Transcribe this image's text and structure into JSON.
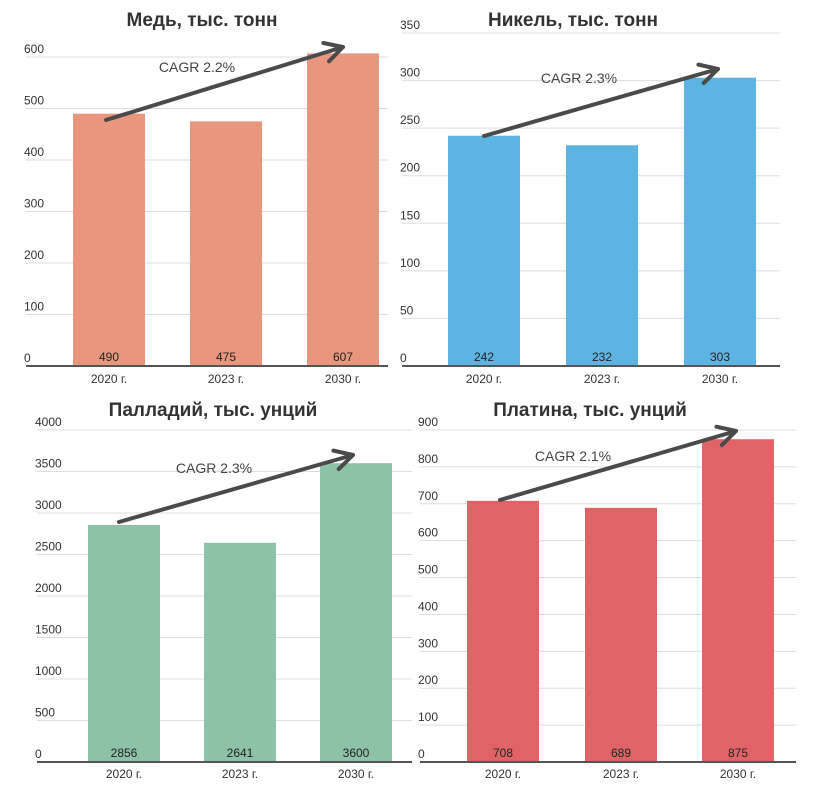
{
  "chart_data": [
    {
      "type": "bar",
      "title": "Медь, тыс. тонн",
      "categories": [
        "2020 г.",
        "2023 г.",
        "2030 г."
      ],
      "values": [
        490,
        475,
        607
      ],
      "value_labels": [
        "490",
        "475",
        "607"
      ],
      "ylim": [
        0,
        600
      ],
      "yticks": [
        0,
        100,
        200,
        300,
        400,
        500,
        600
      ],
      "annotation": "CAGR 2.2%",
      "color": "#E9967E"
    },
    {
      "type": "bar",
      "title": "Никель, тыс. тонн",
      "categories": [
        "2020 г.",
        "2023 г.",
        "2030 г."
      ],
      "values": [
        242,
        232,
        303
      ],
      "value_labels": [
        "242",
        "232",
        "303"
      ],
      "ylim": [
        0,
        350
      ],
      "yticks": [
        0,
        50,
        100,
        150,
        200,
        250,
        300,
        350
      ],
      "annotation": "CAGR 2.3%",
      "color": "#5DB4E3"
    },
    {
      "type": "bar",
      "title": "Палладий, тыс. унций",
      "categories": [
        "2020 г.",
        "2023 г.",
        "2030 г."
      ],
      "values": [
        2856,
        2641,
        3600
      ],
      "value_labels": [
        "2856",
        "2641",
        "3600"
      ],
      "ylim": [
        0,
        4000
      ],
      "yticks": [
        0,
        500,
        1000,
        1500,
        2000,
        2500,
        3000,
        3500,
        4000
      ],
      "annotation": "CAGR 2.3%",
      "color": "#8DC2A6"
    },
    {
      "type": "bar",
      "title": "Платина, тыс. унций",
      "categories": [
        "2020 г.",
        "2023 г.",
        "2030 г."
      ],
      "values": [
        708,
        689,
        875
      ],
      "value_labels": [
        "708",
        "689",
        "875"
      ],
      "ylim": [
        0,
        900
      ],
      "yticks": [
        0,
        100,
        200,
        300,
        400,
        500,
        600,
        700,
        800,
        900
      ],
      "annotation": "CAGR 2.1%",
      "color": "#E06467"
    }
  ]
}
